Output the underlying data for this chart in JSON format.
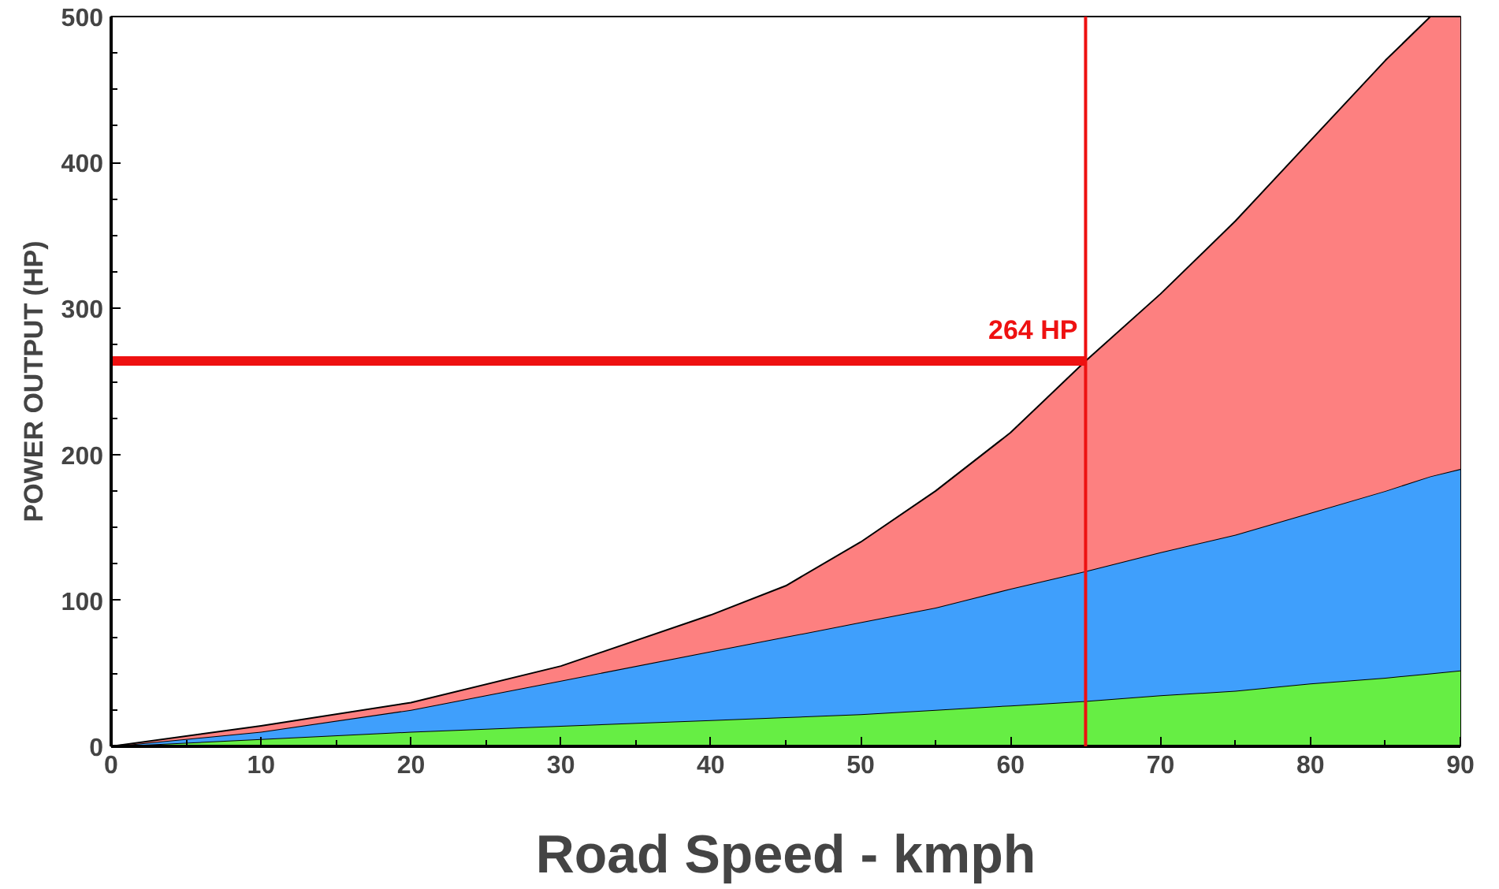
{
  "chart_data": {
    "type": "area",
    "stacked": true,
    "xlabel": "Road Speed - kmph",
    "ylabel": "POWER OUTPUT (HP)",
    "x": [
      0,
      10,
      20,
      30,
      40,
      45,
      50,
      55,
      60,
      65,
      70,
      75,
      80,
      85,
      88,
      90
    ],
    "series": [
      {
        "color": "#66ee44",
        "values": [
          0,
          5,
          10,
          14,
          18,
          20,
          22,
          25,
          28,
          31,
          35,
          38,
          43,
          47,
          50,
          52
        ]
      },
      {
        "color": "#3f9ffc",
        "values": [
          0,
          5,
          15,
          31,
          47,
          55,
          63,
          70,
          80,
          89,
          98,
          107,
          117,
          128,
          135,
          138
        ]
      },
      {
        "color": "#fd8080",
        "values": [
          0,
          4,
          5,
          10,
          25,
          35,
          55,
          80,
          107,
          144,
          177,
          215,
          255,
          295,
          315,
          310
        ]
      }
    ],
    "xlim": [
      0,
      90
    ],
    "ylim": [
      0,
      500
    ],
    "xticks": [
      0,
      10,
      20,
      30,
      40,
      50,
      60,
      70,
      80,
      90
    ],
    "yticks": [
      0,
      100,
      200,
      300,
      400,
      500
    ],
    "ref_lines": [
      {
        "axis": "x",
        "value": 65,
        "color": "#ee1111"
      },
      {
        "axis": "y",
        "value": 264,
        "label": "264 HP",
        "color": "#ee1111"
      }
    ],
    "grid": false
  }
}
